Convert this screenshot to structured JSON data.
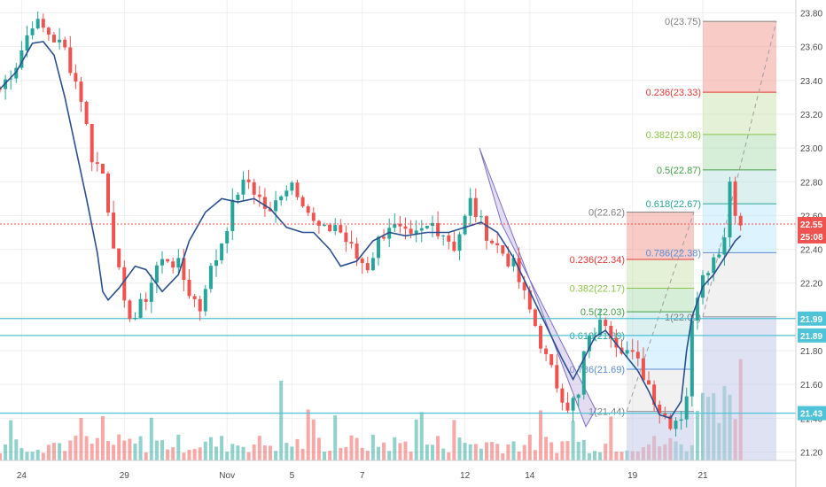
{
  "chart_data": {
    "type": "candlestick",
    "y_axis": {
      "min": 21.15,
      "max": 23.85,
      "ticks": [
        21.2,
        21.4,
        21.6,
        21.8,
        22.0,
        22.2,
        22.4,
        22.6,
        22.8,
        23.0,
        23.2,
        23.4,
        23.6,
        23.8
      ],
      "tick_labels": [
        "21.20",
        "21.40",
        "21.60",
        "21.80",
        "22.00",
        "22.20",
        "22.40",
        "22.60",
        "22.80",
        "23.00",
        "23.20",
        "23.40",
        "23.60",
        "23.80"
      ]
    },
    "x_axis": {
      "date_labels": [
        "24",
        "29",
        "Nov",
        "5",
        "7",
        "12",
        "14",
        "19",
        "21"
      ]
    },
    "last_price": {
      "value": 22.55,
      "label": "22.55",
      "countdown": "25:08",
      "color": "#ef5350"
    },
    "horizontal_levels": [
      {
        "value": 21.99,
        "label": "21.99",
        "color": "#4fc3d7"
      },
      {
        "value": 21.89,
        "label": "21.89",
        "color": "#4fc3d7"
      },
      {
        "value": 21.43,
        "label": "21.43",
        "color": "#4fc3d7"
      }
    ],
    "fib_retracements": [
      {
        "levels": [
          {
            "ratio": 0,
            "price": 22.62,
            "label": "0(22.62)"
          },
          {
            "ratio": 0.236,
            "price": 22.34,
            "label": "0.236(22.34)"
          },
          {
            "ratio": 0.382,
            "price": 22.17,
            "label": "0.382(22.17)"
          },
          {
            "ratio": 0.5,
            "price": 22.03,
            "label": "0.5(22.03)"
          },
          {
            "ratio": 0.618,
            "price": 21.89,
            "label": "0.618(21.89)"
          },
          {
            "ratio": 0.786,
            "price": 21.69,
            "label": "0.786(21.69)"
          },
          {
            "ratio": 1,
            "price": 21.44,
            "label": "1(21.44)"
          }
        ]
      },
      {
        "levels": [
          {
            "ratio": 0,
            "price": 23.75,
            "label": "0(23.75)"
          },
          {
            "ratio": 0.236,
            "price": 23.33,
            "label": "0.236(23.33)"
          },
          {
            "ratio": 0.382,
            "price": 23.08,
            "label": "0.382(23.08)"
          },
          {
            "ratio": 0.5,
            "price": 22.87,
            "label": "0.5(22.87)"
          },
          {
            "ratio": 0.618,
            "price": 22.67,
            "label": "0.618(22.67)"
          },
          {
            "ratio": 0.786,
            "price": 22.38,
            "label": "0.786(22.38)"
          },
          {
            "ratio": 1,
            "price": 22.0,
            "label": "1(22.00)"
          }
        ]
      }
    ],
    "fib_colors": {
      "0": "#808080",
      "0.236": "#e53935",
      "0.382": "#8bc34a",
      "0.5": "#43a047",
      "0.618": "#26a69a",
      "0.786": "#5b8bd6",
      "1": "#808080"
    },
    "colors": {
      "up": "#26a69a",
      "down": "#ef5350",
      "ma": "#2a4f8f",
      "channel": "#7a6fc4",
      "grid": "#eeeeee"
    },
    "price_path": [
      [
        0,
        23.35
      ],
      [
        3,
        23.5
      ],
      [
        6,
        23.75
      ],
      [
        9,
        23.68
      ],
      [
        12,
        23.58
      ],
      [
        15,
        23.3
      ],
      [
        17,
        22.95
      ],
      [
        19,
        22.85
      ],
      [
        21,
        22.45
      ],
      [
        23,
        22.05
      ],
      [
        25,
        22.0
      ],
      [
        27,
        22.12
      ],
      [
        29,
        22.3
      ],
      [
        31,
        22.35
      ],
      [
        33,
        22.3
      ],
      [
        35,
        22.15
      ],
      [
        37,
        22.05
      ],
      [
        38,
        22.2
      ],
      [
        40,
        22.35
      ],
      [
        42,
        22.55
      ],
      [
        44,
        22.75
      ],
      [
        46,
        22.8
      ],
      [
        48,
        22.7
      ],
      [
        50,
        22.6
      ],
      [
        52,
        22.75
      ],
      [
        54,
        22.8
      ],
      [
        56,
        22.7
      ],
      [
        58,
        22.55
      ],
      [
        60,
        22.5
      ],
      [
        62,
        22.55
      ],
      [
        64,
        22.45
      ],
      [
        66,
        22.35
      ],
      [
        68,
        22.3
      ],
      [
        70,
        22.45
      ],
      [
        72,
        22.55
      ],
      [
        74,
        22.5
      ],
      [
        76,
        22.45
      ],
      [
        78,
        22.5
      ],
      [
        80,
        22.55
      ],
      [
        82,
        22.5
      ],
      [
        84,
        22.42
      ],
      [
        86,
        22.58
      ],
      [
        87,
        22.68
      ],
      [
        89,
        22.55
      ],
      [
        91,
        22.45
      ],
      [
        93,
        22.38
      ],
      [
        95,
        22.3
      ],
      [
        97,
        22.12
      ],
      [
        99,
        21.95
      ],
      [
        101,
        21.75
      ],
      [
        103,
        21.6
      ],
      [
        105,
        21.48
      ],
      [
        107,
        21.52
      ],
      [
        108,
        21.78
      ],
      [
        110,
        21.92
      ],
      [
        112,
        21.98
      ],
      [
        114,
        21.86
      ],
      [
        116,
        21.8
      ],
      [
        118,
        21.72
      ],
      [
        120,
        21.6
      ],
      [
        122,
        21.45
      ],
      [
        124,
        21.38
      ],
      [
        126,
        21.42
      ],
      [
        127,
        21.55
      ],
      [
        128,
        21.95
      ],
      [
        129,
        22.15
      ],
      [
        130,
        22.28
      ],
      [
        132,
        22.34
      ],
      [
        134,
        22.48
      ],
      [
        135,
        22.84
      ],
      [
        136,
        22.6
      ],
      [
        137,
        22.55
      ]
    ],
    "ma_path": [
      [
        0,
        23.35
      ],
      [
        3,
        23.45
      ],
      [
        6,
        23.62
      ],
      [
        8,
        23.63
      ],
      [
        10,
        23.55
      ],
      [
        12,
        23.3
      ],
      [
        14,
        23.0
      ],
      [
        16,
        22.7
      ],
      [
        18,
        22.38
      ],
      [
        19,
        22.15
      ],
      [
        20,
        22.1
      ],
      [
        22,
        22.17
      ],
      [
        25,
        22.3
      ],
      [
        27,
        22.28
      ],
      [
        30,
        22.15
      ],
      [
        33,
        22.25
      ],
      [
        35,
        22.45
      ],
      [
        38,
        22.62
      ],
      [
        41,
        22.7
      ],
      [
        44,
        22.68
      ],
      [
        47,
        22.7
      ],
      [
        50,
        22.64
      ],
      [
        53,
        22.53
      ],
      [
        56,
        22.5
      ],
      [
        58,
        22.5
      ],
      [
        61,
        22.4
      ],
      [
        63,
        22.3
      ],
      [
        66,
        22.33
      ],
      [
        69,
        22.45
      ],
      [
        72,
        22.5
      ],
      [
        75,
        22.48
      ],
      [
        79,
        22.5
      ],
      [
        83,
        22.5
      ],
      [
        86,
        22.53
      ],
      [
        89,
        22.56
      ],
      [
        92,
        22.5
      ],
      [
        95,
        22.35
      ],
      [
        98,
        22.15
      ],
      [
        101,
        21.95
      ],
      [
        104,
        21.75
      ],
      [
        106,
        21.63
      ],
      [
        108,
        21.75
      ],
      [
        110,
        21.88
      ],
      [
        112,
        21.92
      ],
      [
        114,
        21.84
      ],
      [
        116,
        21.76
      ],
      [
        118,
        21.68
      ],
      [
        120,
        21.56
      ],
      [
        122,
        21.42
      ],
      [
        124,
        21.4
      ],
      [
        126,
        21.5
      ],
      [
        127,
        21.8
      ],
      [
        128,
        22.0
      ],
      [
        130,
        22.18
      ],
      [
        132,
        22.25
      ],
      [
        134,
        22.35
      ],
      [
        136,
        22.45
      ],
      [
        137,
        22.48
      ]
    ]
  }
}
